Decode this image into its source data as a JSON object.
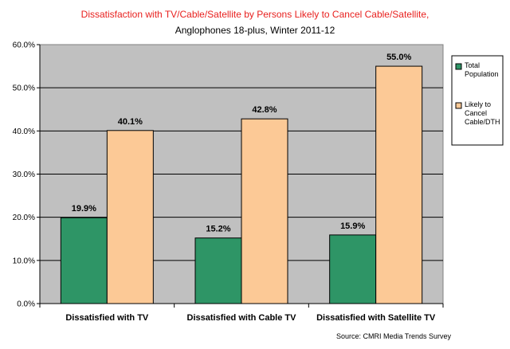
{
  "chart_data": {
    "type": "bar",
    "title": "Dissatisfaction with TV/Cable/Satellite by Persons Likely to Cancel Cable/Satellite,",
    "subtitle": "Anglophones 18-plus, Winter 2011-12",
    "categories": [
      "Dissatisfied with TV",
      "Dissatisfied with Cable TV",
      "Dissatisfied with Satellite TV"
    ],
    "series": [
      {
        "name": "Total Population",
        "legend_lines": [
          "Total",
          "Population"
        ],
        "values": [
          19.9,
          15.2,
          15.9
        ],
        "labels": [
          "19.9%",
          "15.2%",
          "15.9%"
        ],
        "color": "#2e9566"
      },
      {
        "name": "Likely to Cancel Cable/DTH",
        "legend_lines": [
          "Likely to",
          "Cancel",
          "Cable/DTH"
        ],
        "values": [
          40.1,
          42.8,
          55.0
        ],
        "labels": [
          "40.1%",
          "42.8%",
          "55.0%"
        ],
        "color": "#fcc996"
      }
    ],
    "ylim": [
      0,
      60
    ],
    "yticks": [
      0,
      10,
      20,
      30,
      40,
      50,
      60
    ],
    "ytick_labels": [
      "0.0%",
      "10.0%",
      "20.0%",
      "30.0%",
      "40.0%",
      "50.0%",
      "60.0%"
    ],
    "xlabel": "",
    "ylabel": "",
    "grid": true,
    "legend_position": "right",
    "plot_background": "#c0c0c0",
    "source": "Source: CMRI Media Trends Survey"
  }
}
